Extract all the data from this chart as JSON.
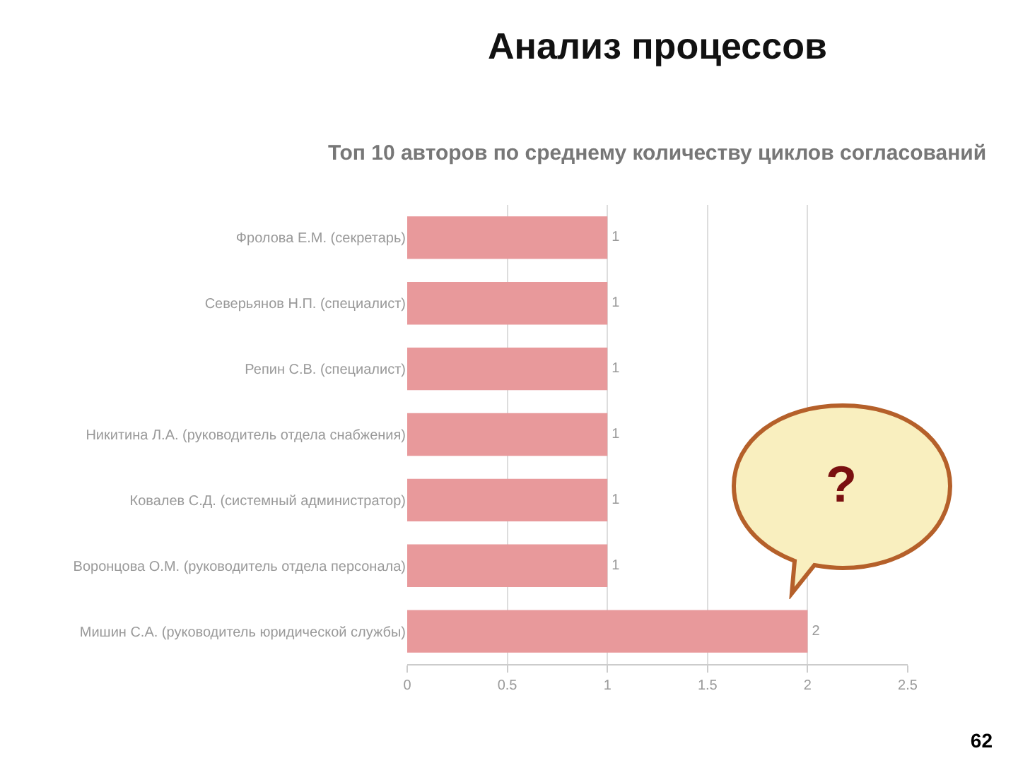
{
  "chart_data": {
    "type": "bar",
    "orientation": "horizontal",
    "title": "Анализ процессов",
    "subtitle": "Топ 10 авторов по среднему количеству циклов согласований",
    "categories": [
      "Фролова Е.М. (секретарь)",
      "Северьянов Н.П. (специалист)",
      "Репин С.В. (специалист)",
      "Никитина Л.А. (руководитель отдела снабжения)",
      "Ковалев С.Д. (системный администратор)",
      "Воронцова О.М. (руководитель отдела персонала)",
      "Мишин С.А. (руководитель юридической службы)"
    ],
    "values": [
      1,
      1,
      1,
      1,
      1,
      1,
      2
    ],
    "color": "#e8999b",
    "data_labels": true,
    "xlim": [
      0,
      2.5
    ],
    "xticks": [
      0,
      0.5,
      1,
      1.5,
      2,
      2.5
    ],
    "grid": "x",
    "annotations": [
      "?",
      "62"
    ]
  }
}
